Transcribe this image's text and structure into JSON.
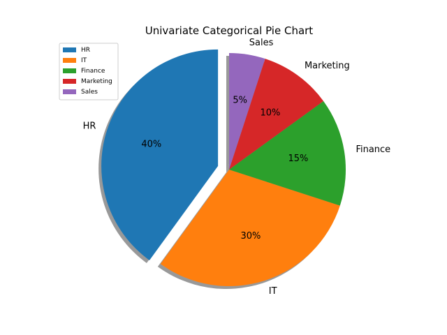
{
  "chart_data": {
    "type": "pie",
    "title": "Univariate Categorical Pie Chart",
    "categories": [
      "HR",
      "IT",
      "Finance",
      "Marketing",
      "Sales"
    ],
    "values": [
      40,
      30,
      15,
      10,
      5
    ],
    "value_labels": [
      "40%",
      "30%",
      "15%",
      "10%",
      "5%"
    ],
    "colors": [
      "#1f77b4",
      "#ff7f0e",
      "#2ca02c",
      "#d62728",
      "#9467bd"
    ],
    "explode": [
      0.1,
      0,
      0,
      0,
      0
    ],
    "start_angle_deg": 90,
    "direction": "counterclockwise",
    "shadow": true,
    "legend": {
      "position": "top-left",
      "entries": [
        "HR",
        "IT",
        "Finance",
        "Marketing",
        "Sales"
      ]
    }
  }
}
